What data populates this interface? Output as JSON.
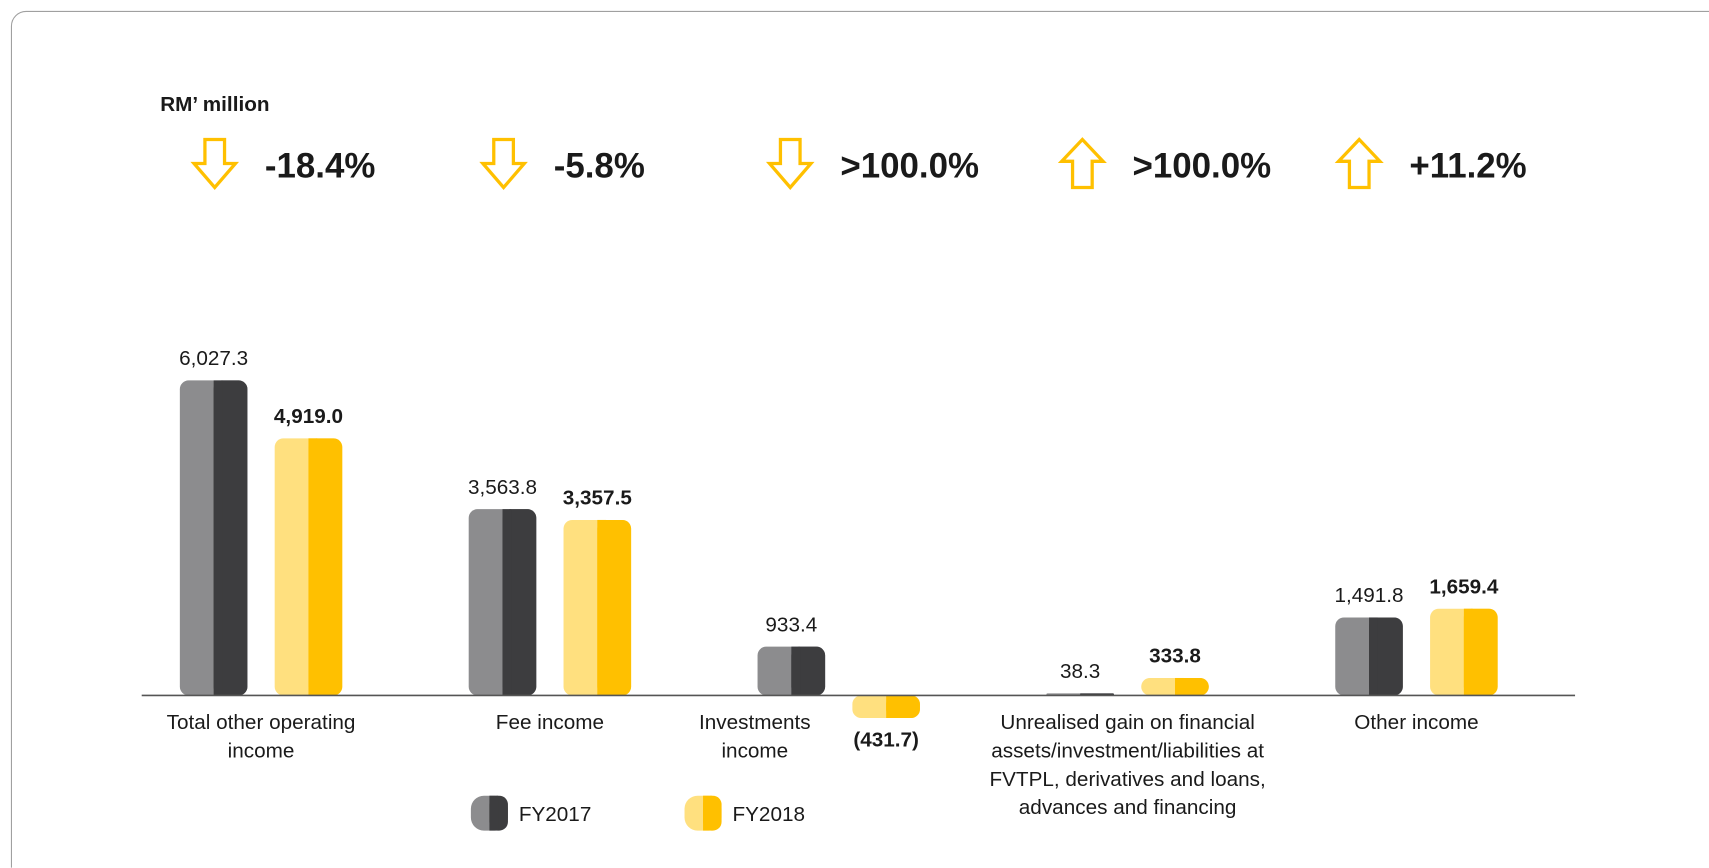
{
  "title": "RM’ million",
  "changes": [
    {
      "label": "-18.4%",
      "direction": "down"
    },
    {
      "label": "-5.8%",
      "direction": "down"
    },
    {
      "label": ">100.0%",
      "direction": "down"
    },
    {
      "label": ">100.0%",
      "direction": "up"
    },
    {
      "label": "+11.2%",
      "direction": "up"
    }
  ],
  "chart_data": {
    "type": "bar",
    "categories": [
      "Total other operating income",
      "Fee income",
      "Investments income",
      "Unrealised gain on financial assets/investment/liabilities at FVTPL, derivatives and loans, advances and financing",
      "Other income"
    ],
    "series": [
      {
        "name": "FY2017",
        "color": "#3d3d3f",
        "color_light": "#8c8c8e",
        "values": [
          6027.3,
          3563.8,
          933.4,
          38.3,
          1491.8
        ],
        "value_labels": [
          "6,027.3",
          "3,563.8",
          "933.4",
          "38.3",
          "1,491.8"
        ]
      },
      {
        "name": "FY2018",
        "color": "#ffc000",
        "color_light": "#ffe07f",
        "values": [
          4919.0,
          3357.5,
          -431.7,
          333.8,
          1659.4
        ],
        "value_labels": [
          "4,919.0",
          "3,357.5",
          "(431.7)",
          "333.8",
          "1,659.4"
        ]
      }
    ]
  }
}
